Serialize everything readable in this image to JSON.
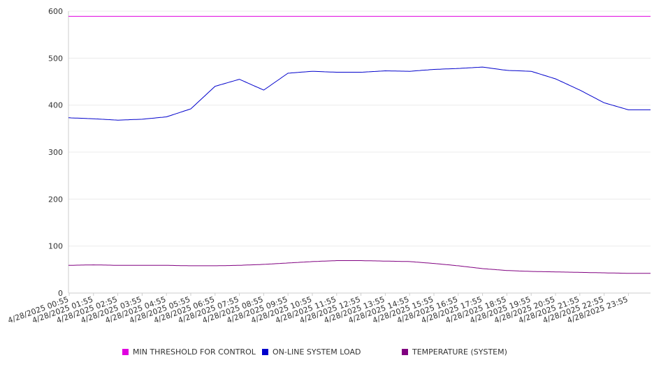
{
  "chart_data": {
    "type": "line",
    "yticks": [
      0,
      100,
      200,
      300,
      400,
      500,
      600
    ],
    "ylim": [
      0,
      600
    ],
    "x": [
      "4/28/2025 00:55",
      "4/28/2025 01:55",
      "4/28/2025 02:55",
      "4/28/2025 03:55",
      "4/28/2025 04:55",
      "4/28/2025 05:55",
      "4/28/2025 06:55",
      "4/28/2025 07:55",
      "4/28/2025 08:55",
      "4/28/2025 09:55",
      "4/28/2025 10:55",
      "4/28/2025 11:55",
      "4/28/2025 12:55",
      "4/28/2025 13:55",
      "4/28/2025 14:55",
      "4/28/2025 15:55",
      "4/28/2025 16:55",
      "4/28/2025 17:55",
      "4/28/2025 18:55",
      "4/28/2025 19:55",
      "4/28/2025 20:55",
      "4/28/2025 21:55",
      "4/28/2025 22:55",
      "4/28/2025 23:55"
    ],
    "grid": true,
    "legend_position": "bottom",
    "series": [
      {
        "name": "MIN THRESHOLD FOR CONTROL",
        "color": "#e000e0",
        "values": [
          589,
          589,
          589,
          589,
          589,
          589,
          589,
          589,
          589,
          589,
          589,
          589,
          589,
          589,
          589,
          589,
          589,
          589,
          589,
          589,
          589,
          589,
          589,
          589
        ]
      },
      {
        "name": "ON-LINE SYSTEM LOAD",
        "color": "#0000cc",
        "values": [
          373,
          371,
          368,
          370,
          375,
          392,
          440,
          455,
          432,
          468,
          472,
          470,
          470,
          473,
          472,
          476,
          478,
          481,
          474,
          472,
          456,
          432,
          405,
          390
        ]
      },
      {
        "name": "TEMPERATURE (SYSTEM)",
        "color": "#800080",
        "values": [
          59,
          60,
          59,
          59,
          59,
          58,
          58,
          59,
          61,
          64,
          67,
          69,
          69,
          68,
          67,
          63,
          58,
          52,
          48,
          46,
          45,
          44,
          43,
          42
        ]
      }
    ]
  }
}
